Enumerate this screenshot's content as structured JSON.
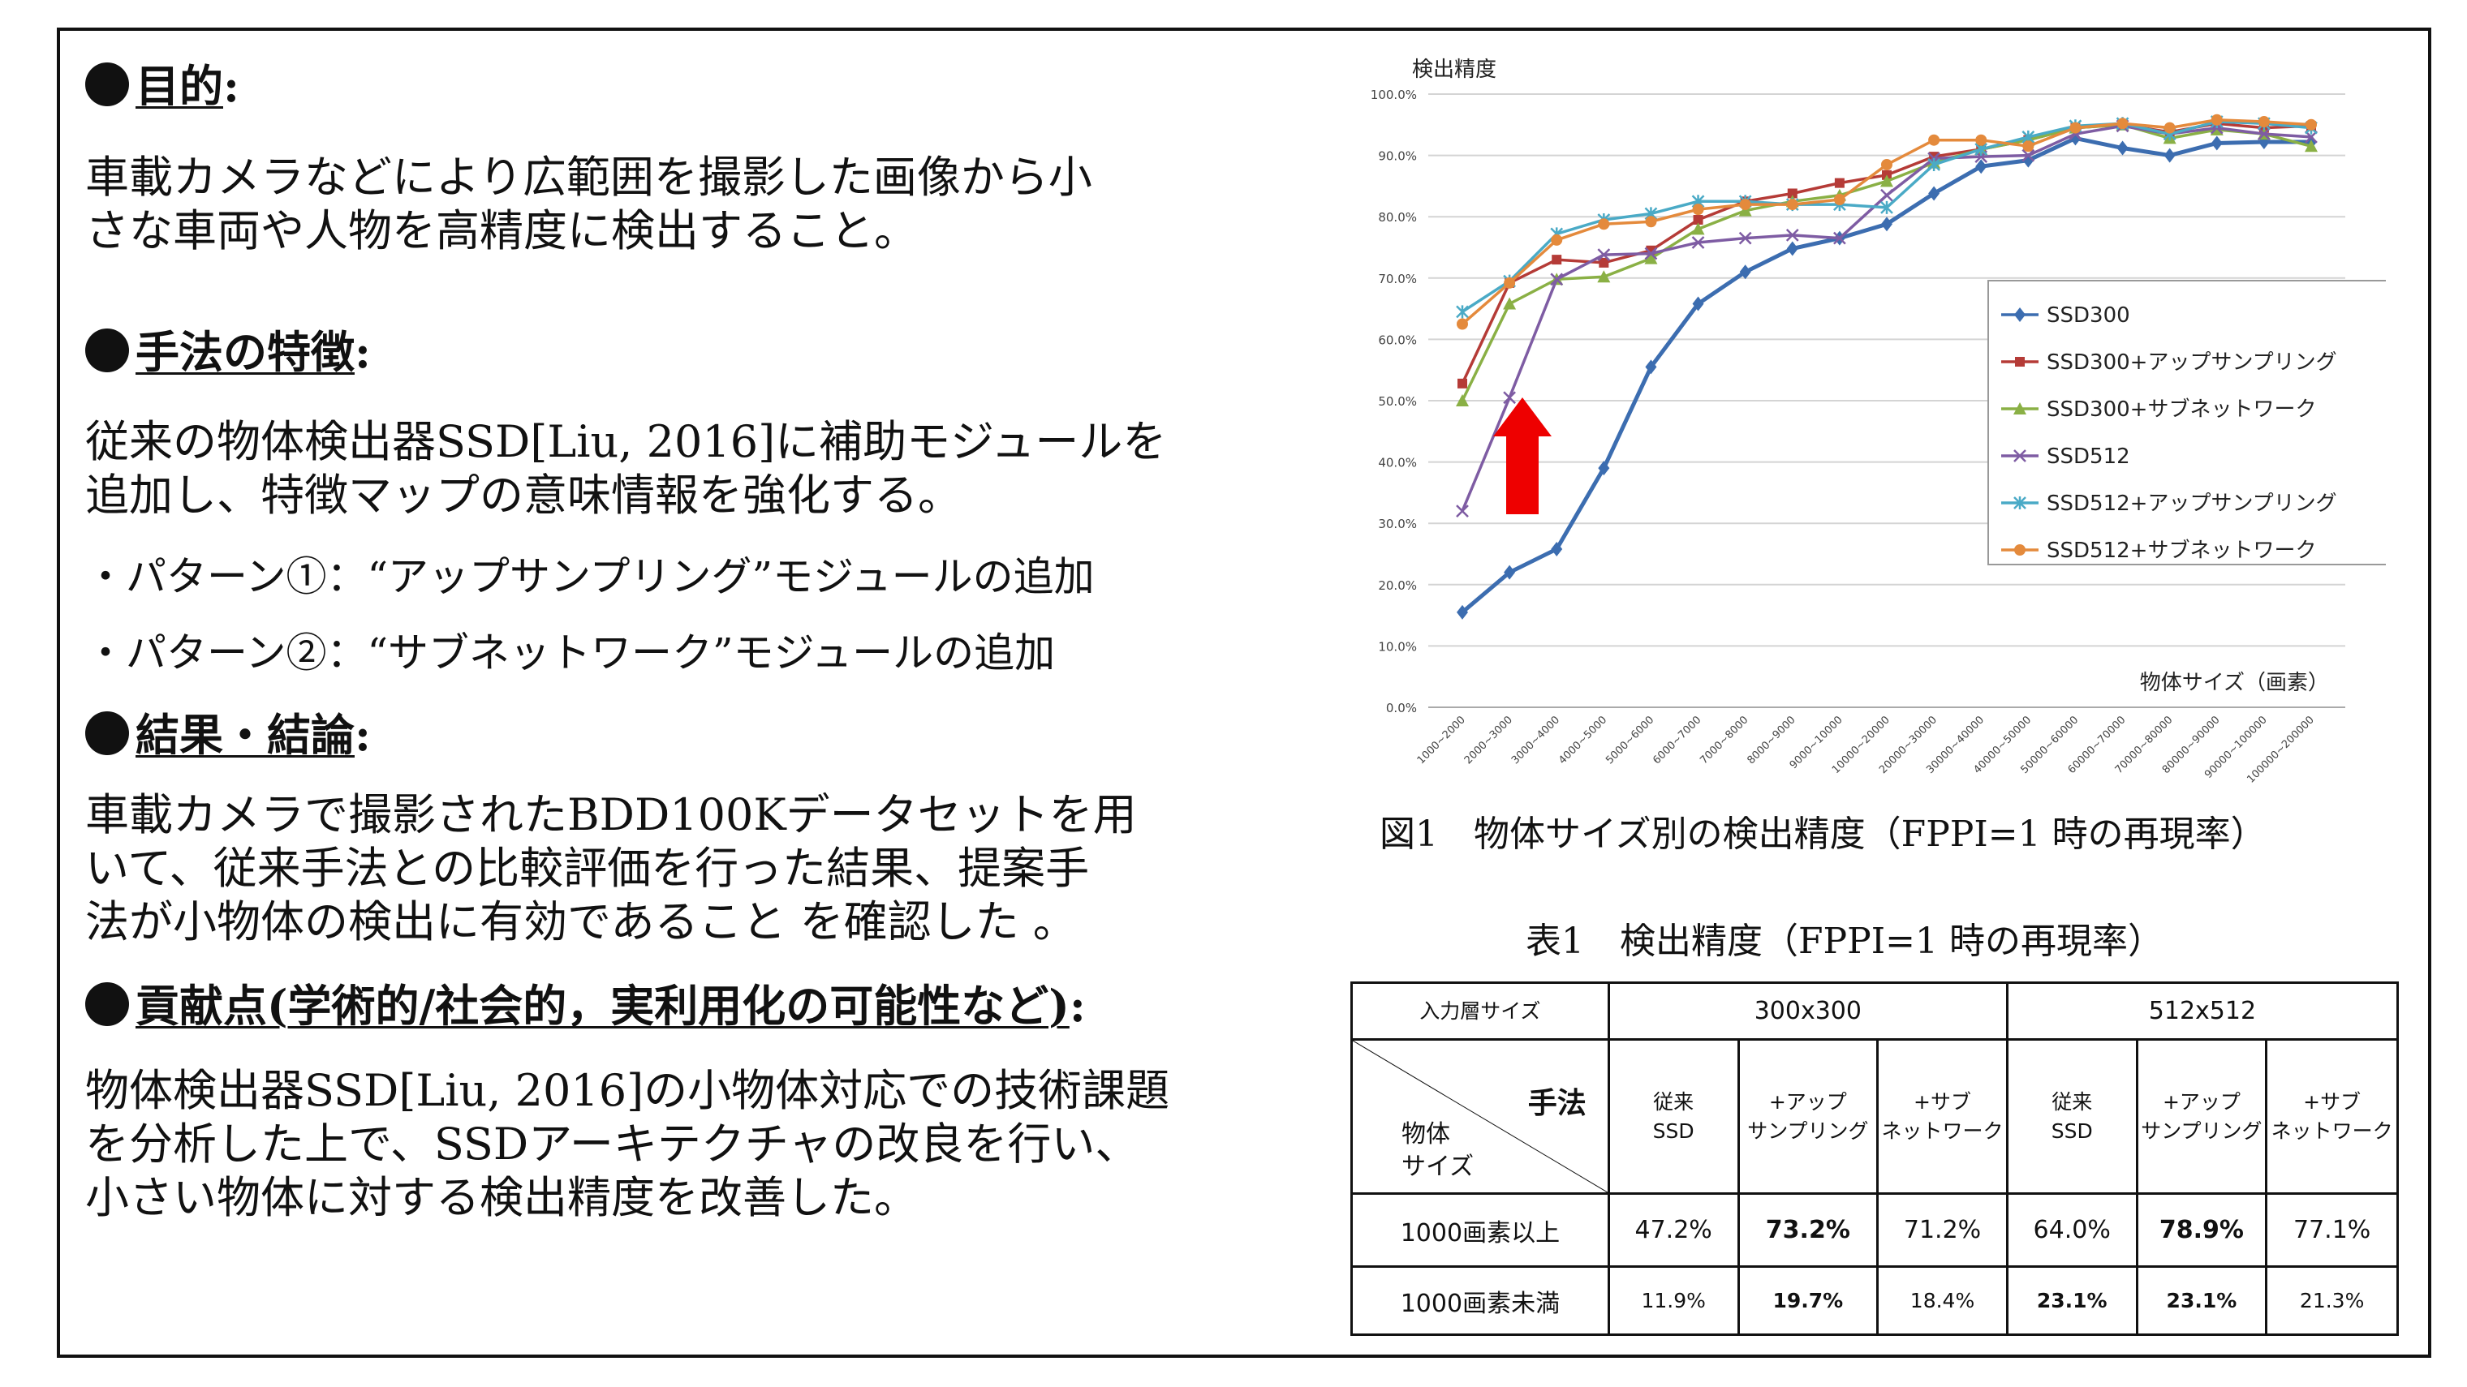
{
  "sections": [
    {
      "title": "目的",
      "colon": ":",
      "body": [
        "車載カメラなどにより広範囲を撮影した画像から小",
        "さな車両や人物を高精度に検出すること。"
      ]
    },
    {
      "title": "手法の特徴",
      "colon": ":",
      "body": [
        "従来の物体検出器SSD[Liu, 2016]に補助モジュールを",
        "追加し、特徴マップの意味情報を強化する。"
      ],
      "patterns": [
        "・パターン①：“アップサンプリング”モジュールの追加",
        "・パターン②：“サブネットワーク”モジュールの追加"
      ]
    },
    {
      "title": "結果・結論",
      "colon": ":",
      "body": [
        "車載カメラで撮影されたBDD100Kデータセットを用",
        "いて、従来手法との比較評価を行った結果、提案手",
        "法が小物体の検出に有効であること を確認した 。"
      ]
    },
    {
      "title": "貢献点(学術的/社会的，実利用化の可能性など)",
      "colon": ":",
      "body": [
        "物体検出器SSD[Liu, 2016]の小物体対応での技術課題",
        "を分析した上で、SSDアーキテクチャの改良を行い、",
        "小さい物体に対する検出精度を改善した。"
      ]
    }
  ],
  "figure_caption": "図1　物体サイズ別の検出精度（FPPI=1 時の再現率）",
  "table_caption": "表1　検出精度（FPPI=1 時の再現率）",
  "table": {
    "input_label": "入力層サイズ",
    "groups": [
      "300x300",
      "512x512"
    ],
    "method_label": "手法",
    "object_label_1": "物体",
    "object_label_2": "サイズ",
    "methods": [
      {
        "l1": "従来",
        "l2": "SSD"
      },
      {
        "l1": "+アップ",
        "l2": "サンプリング"
      },
      {
        "l1": "+サブ",
        "l2": "ネットワーク"
      },
      {
        "l1": "従来",
        "l2": "SSD"
      },
      {
        "l1": "+アップ",
        "l2": "サンプリング"
      },
      {
        "l1": "+サブ",
        "l2": "ネットワーク"
      }
    ],
    "rows": [
      {
        "label": "1000画素以上",
        "values": [
          "47.2%",
          "73.2%",
          "71.2%",
          "64.0%",
          "78.9%",
          "77.1%"
        ],
        "bold": [
          false,
          true,
          false,
          false,
          true,
          false
        ]
      },
      {
        "label": "1000画素未満",
        "values": [
          "11.9%",
          "19.7%",
          "18.4%",
          "23.1%",
          "23.1%",
          "21.3%"
        ],
        "bold": [
          false,
          true,
          false,
          true,
          true,
          false
        ]
      }
    ]
  },
  "chart_data": {
    "type": "line",
    "title": "",
    "ylabel": "検出精度",
    "xlabel": "物体サイズ（画素）",
    "ylim": [
      0,
      100
    ],
    "yticks": [
      "0.0%",
      "10.0%",
      "20.0%",
      "30.0%",
      "40.0%",
      "50.0%",
      "60.0%",
      "70.0%",
      "80.0%",
      "90.0%",
      "100.0%"
    ],
    "categories": [
      "1000~2000",
      "2000~3000",
      "3000~4000",
      "4000~5000",
      "5000~6000",
      "6000~7000",
      "7000~8000",
      "8000~9000",
      "9000~10000",
      "10000~20000",
      "20000~30000",
      "30000~40000",
      "40000~50000",
      "50000~60000",
      "60000~70000",
      "70000~80000",
      "80000~90000",
      "90000~100000",
      "100000~200000"
    ],
    "legend_position": "right-middle",
    "grid": true,
    "series": [
      {
        "name": "SSD300",
        "color": "#3c6db0",
        "marker": "diamond",
        "values": [
          15.5,
          22,
          25.8,
          39,
          55.5,
          65.8,
          71,
          74.8,
          76.5,
          78.8,
          83.8,
          88.2,
          89.2,
          92.8,
          91.2,
          90,
          92,
          92.2,
          92.2
        ]
      },
      {
        "name": "SSD300+アップサンプリング",
        "color": "#b53b37",
        "marker": "square",
        "values": [
          52.8,
          69.2,
          73,
          72.5,
          74.5,
          79.5,
          82.5,
          83.8,
          85.5,
          86.8,
          89.8,
          91,
          92.5,
          94.5,
          95,
          93.8,
          95.2,
          94.5,
          94.8
        ]
      },
      {
        "name": "SSD300+サブネットワーク",
        "color": "#8ab045",
        "marker": "triangle",
        "values": [
          50,
          65.8,
          69.8,
          70.2,
          73.2,
          78,
          81,
          82.5,
          83.5,
          85.8,
          88.8,
          91,
          92.5,
          94.5,
          95,
          92.8,
          94.2,
          93.5,
          91.5
        ]
      },
      {
        "name": "SSD512",
        "color": "#7e5ca3",
        "marker": "x",
        "values": [
          32,
          50.5,
          69.8,
          73.8,
          74,
          75.8,
          76.5,
          77,
          76.5,
          83.5,
          89.5,
          89.8,
          90,
          93.5,
          94.8,
          93.5,
          94.5,
          93.5,
          93
        ]
      },
      {
        "name": "SSD512+アップサンプリング",
        "color": "#4aaac6",
        "marker": "star",
        "values": [
          64.5,
          69.5,
          77.2,
          79.5,
          80.5,
          82.5,
          82.5,
          82,
          82,
          81.5,
          88.5,
          91,
          93,
          94.8,
          95.2,
          93.5,
          95.5,
          95.2,
          94.5
        ]
      },
      {
        "name": "SSD512+サブネットワーク",
        "color": "#e48a3c",
        "marker": "circle",
        "values": [
          62.5,
          69.2,
          76.2,
          78.8,
          79.2,
          81.2,
          82,
          82,
          82.8,
          88.5,
          92.5,
          92.5,
          91.5,
          94.5,
          95.2,
          94.5,
          95.8,
          95.5,
          95
        ]
      }
    ],
    "annotation": "red-up-arrow"
  }
}
